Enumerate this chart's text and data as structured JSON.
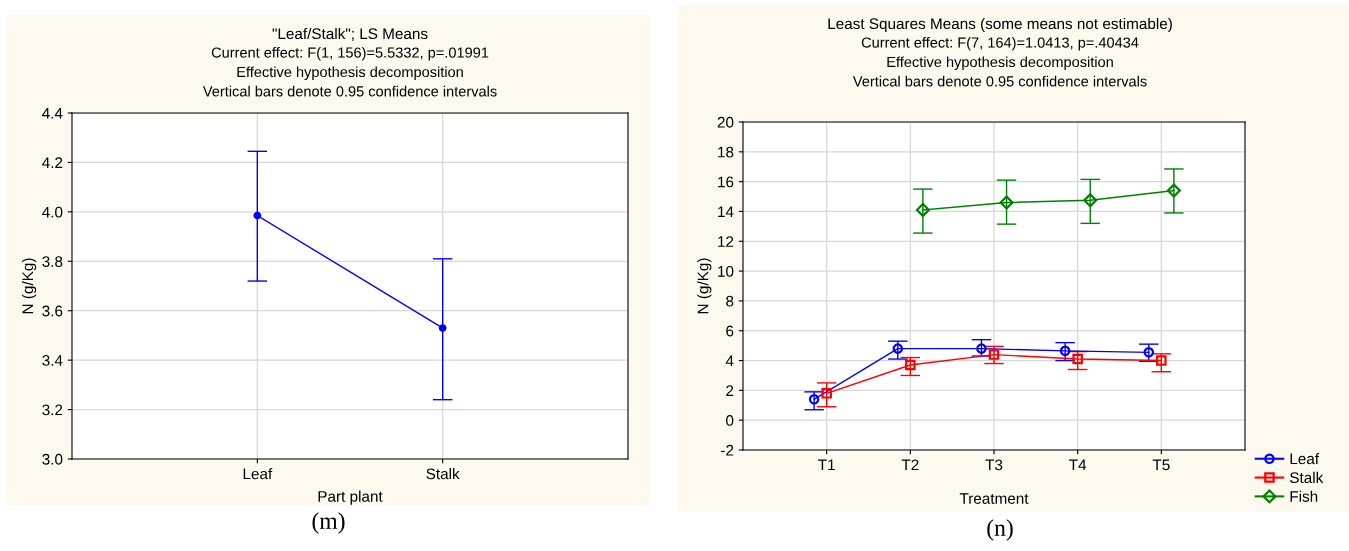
{
  "chart_data": [
    {
      "type": "line",
      "title": "\"Leaf/Stalk\"; LS Means",
      "subtitle": "Current effect: F(1, 156)=5.5332, p=.01991\nEffective hypothesis decomposition\nVertical bars denote 0.95 confidence intervals",
      "xlabel": "Part plant",
      "ylabel": "N (g/Kg)",
      "categories": [
        "Leaf",
        "Stalk"
      ],
      "series": [
        {
          "color": "#0000ff",
          "marker": "circle",
          "values": [
            3.985,
            3.53
          ],
          "errors": [
            [
              3.72,
              4.245
            ],
            [
              3.24,
              3.81
            ]
          ]
        }
      ],
      "ylim": [
        3.0,
        4.4
      ],
      "yticks": [
        {
          "value": 3.0,
          "label": "3.0"
        },
        {
          "value": 3.2,
          "label": "3.2"
        },
        {
          "value": 3.4,
          "label": "3.4"
        },
        {
          "value": 3.6,
          "label": "3.6"
        },
        {
          "value": 3.8,
          "label": "3.8"
        },
        {
          "value": 4.0,
          "label": "4.0"
        },
        {
          "value": 4.2,
          "label": "4.2"
        },
        {
          "value": 4.4,
          "label": "4.4"
        }
      ],
      "grid": true,
      "legend": false,
      "annotations": [
        "(m)"
      ]
    },
    {
      "type": "line",
      "title": "Least Squares Means (some means not estimable)",
      "subtitle": "Current effect: F(7, 164)=1.0413, p=.40434\nEffective hypothesis decomposition\nVertical bars denote 0.95 confidence intervals",
      "xlabel": "Treatment",
      "ylabel": "N (g/Kg)",
      "categories": [
        "T1",
        "T2",
        "T3",
        "T4",
        "T5"
      ],
      "series": [
        {
          "name": "Leaf",
          "color": "#0000ff",
          "marker": "circle",
          "values": [
            1.4,
            4.8,
            4.8,
            4.65,
            4.55
          ],
          "errors": [
            [
              0.7,
              1.9
            ],
            [
              4.1,
              5.3
            ],
            [
              4.3,
              5.4
            ],
            [
              4.0,
              5.2
            ],
            [
              3.95,
              5.1
            ]
          ]
        },
        {
          "name": "Stalk",
          "color": "#ff0000",
          "marker": "square",
          "values": [
            1.8,
            3.7,
            4.4,
            4.1,
            4.0
          ],
          "errors": [
            [
              0.9,
              2.5
            ],
            [
              3.0,
              4.2
            ],
            [
              3.8,
              4.95
            ],
            [
              3.4,
              4.6
            ],
            [
              3.25,
              4.45
            ]
          ]
        },
        {
          "name": "Fish",
          "color": "#008000",
          "marker": "diamond",
          "values": [
            null,
            14.1,
            14.6,
            14.75,
            15.4
          ],
          "errors": [
            null,
            [
              12.55,
              15.5
            ],
            [
              13.15,
              16.1
            ],
            [
              13.2,
              16.15
            ],
            [
              13.9,
              16.85
            ]
          ]
        }
      ],
      "ylim": [
        -2,
        20
      ],
      "yticks": [
        -2,
        0,
        2,
        4,
        6,
        8,
        10,
        12,
        14,
        16,
        18,
        20
      ],
      "grid": true,
      "legend": "bottom right",
      "annotations": [
        "(n)"
      ]
    }
  ]
}
